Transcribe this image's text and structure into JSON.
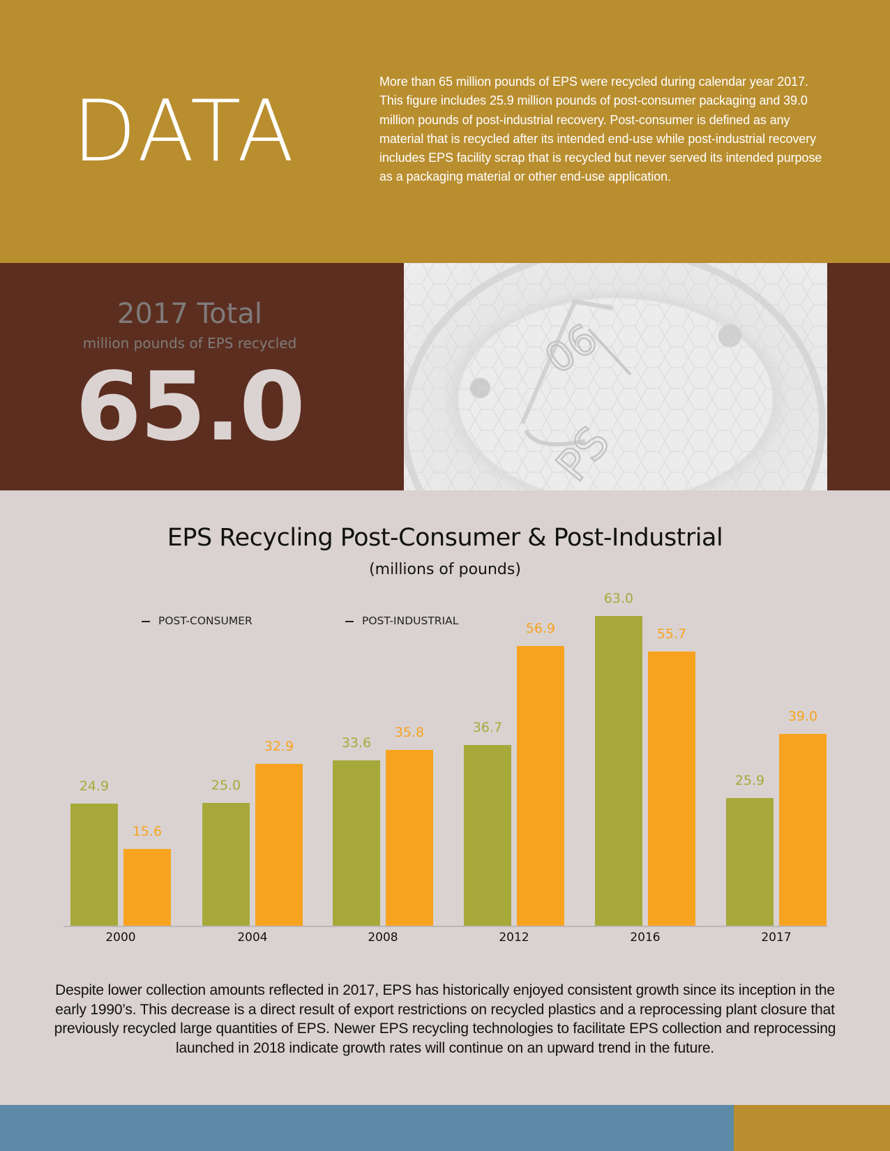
{
  "header": {
    "title": "DATA",
    "text": "More than 65 million pounds of EPS were recycled during calendar year 2017. This figure includes 25.9 million pounds of post-consumer packaging and 39.0 million pounds of post-industrial recovery. Post-consumer is defined as any material that is recycled after its intended end-use while post-industrial recovery includes EPS facility scrap that is recycled but never served its intended purpose as a packaging material or other end-use application."
  },
  "total": {
    "title": "2017 Total",
    "subtitle": "million pounds of EPS recycled",
    "value": "65.0"
  },
  "photo": {
    "recycle_code": "06",
    "material": "PS"
  },
  "colors": {
    "header_bg": "#b98e2f",
    "band_bg": "#5c2e20",
    "page_bg": "#d9d2d1",
    "post_consumer": "#a6a93a",
    "post_industrial": "#f8a320",
    "footer_blue": "#5d8aa6",
    "footer_gold": "#b98e2f"
  },
  "chart_data": {
    "type": "bar",
    "title": "EPS Recycling Post-Consumer & Post-Industrial",
    "subtitle": "(millions of pounds)",
    "xlabel": "",
    "ylabel": "millions of pounds",
    "categories": [
      "2000",
      "2004",
      "2008",
      "2012",
      "2016",
      "2017"
    ],
    "series": [
      {
        "name": "POST-CONSUMER",
        "color": "#a6a93a",
        "values": [
          24.9,
          25.0,
          33.6,
          36.7,
          63.0,
          25.9
        ],
        "labels": [
          "24.9",
          "25.0",
          "33.6",
          "36.7",
          "63.0",
          "25.9"
        ]
      },
      {
        "name": "POST-INDUSTRIAL",
        "color": "#f8a320",
        "values": [
          15.6,
          32.9,
          35.8,
          56.9,
          55.7,
          39.0
        ],
        "labels": [
          "15.6",
          "32.9",
          "35.8",
          "56.9",
          "55.7",
          "39.0"
        ]
      }
    ],
    "legend_position": "top-left",
    "grid": false,
    "ylim": [
      0,
      63
    ]
  },
  "legend": {
    "dash": "—",
    "items": [
      "POST-CONSUMER",
      "POST-INDUSTRIAL"
    ]
  },
  "footnote": "Despite lower collection amounts reflected in 2017, EPS has historically enjoyed consistent growth since its inception in the early 1990’s. This decrease is a direct result of export restrictions on recycled plastics and a reprocessing plant closure that previously recycled large quantities of EPS. Newer EPS recycling technologies to facilitate EPS collection and reprocessing launched in 2018 indicate growth rates will continue on an upward trend in the future."
}
